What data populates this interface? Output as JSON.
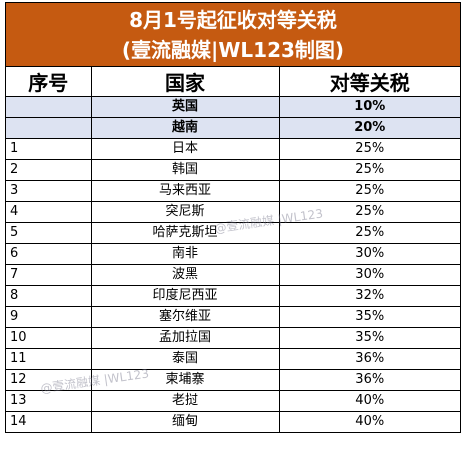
{
  "title": {
    "line1": "8月1号起征收对等关税",
    "line2": "(壹流融媒|WL123制图)"
  },
  "columns": [
    "序号",
    "国家",
    "对等关税"
  ],
  "rows": [
    {
      "num": "",
      "country": "英国",
      "rate": "10%",
      "highlight": true
    },
    {
      "num": "",
      "country": "越南",
      "rate": "20%",
      "highlight": true
    },
    {
      "num": "1",
      "country": "日本",
      "rate": "25%"
    },
    {
      "num": "2",
      "country": "韩国",
      "rate": "25%"
    },
    {
      "num": "3",
      "country": "马来西亚",
      "rate": "25%"
    },
    {
      "num": "4",
      "country": "突尼斯",
      "rate": "25%"
    },
    {
      "num": "5",
      "country": "哈萨克斯坦",
      "rate": "25%"
    },
    {
      "num": "6",
      "country": "南非",
      "rate": "30%"
    },
    {
      "num": "7",
      "country": "波黑",
      "rate": "30%"
    },
    {
      "num": "8",
      "country": "印度尼西亚",
      "rate": "32%"
    },
    {
      "num": "9",
      "country": "塞尔维亚",
      "rate": "35%"
    },
    {
      "num": "10",
      "country": "孟加拉国",
      "rate": "35%"
    },
    {
      "num": "11",
      "country": "泰国",
      "rate": "36%"
    },
    {
      "num": "12",
      "country": "柬埔寨",
      "rate": "36%"
    },
    {
      "num": "13",
      "country": "老挝",
      "rate": "40%"
    },
    {
      "num": "14",
      "country": "缅甸",
      "rate": "40%"
    }
  ],
  "watermarks": [
    "@壹流融媒 |WL123",
    "@壹流融媒 |WL123"
  ]
}
